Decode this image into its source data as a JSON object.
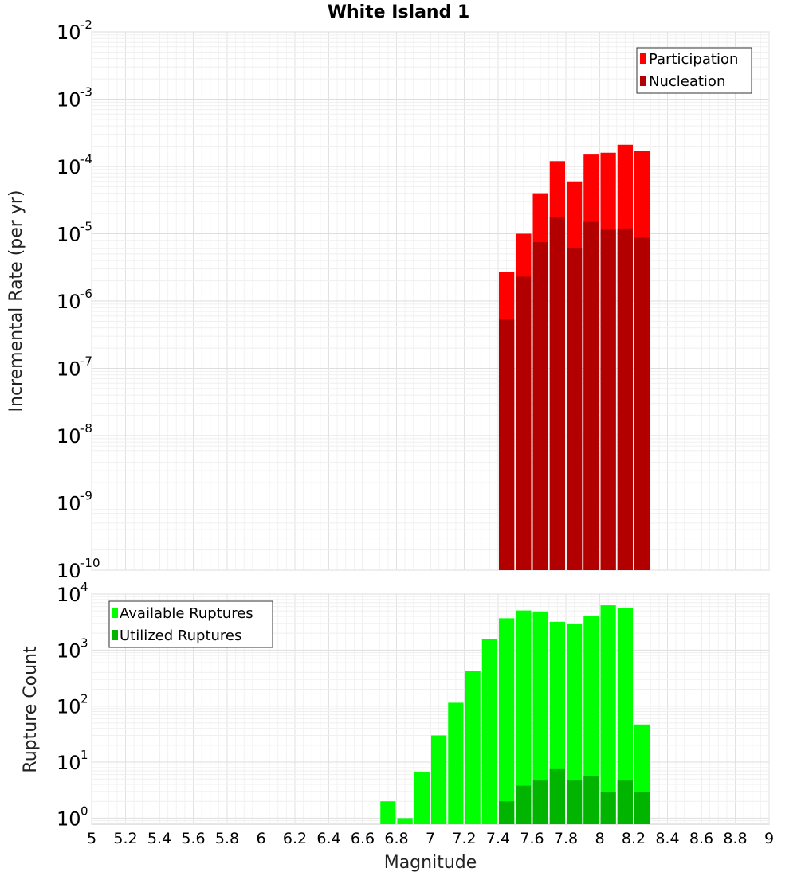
{
  "chart_data": [
    {
      "type": "bar",
      "title": "White Island 1",
      "xlabel": "",
      "ylabel": "Incremental Rate (per yr)",
      "yscale": "log",
      "ylim": [
        1e-10,
        0.01
      ],
      "xlim": [
        5,
        9
      ],
      "y_tick_exponents": [
        "-2",
        "-3",
        "-4",
        "-5",
        "-6",
        "-7",
        "-8",
        "-9",
        "-10"
      ],
      "y_tick_base": "10",
      "grid": true,
      "legend": "top-right",
      "x": [
        7.45,
        7.55,
        7.65,
        7.75,
        7.85,
        7.95,
        8.05,
        8.15,
        8.25
      ],
      "series": [
        {
          "name": "Participation",
          "color": "#ff0000",
          "values": [
            2.7e-06,
            1e-05,
            4e-05,
            0.00012,
            6e-05,
            0.00015,
            0.00016,
            0.00021,
            0.00017
          ]
        },
        {
          "name": "Nucleation",
          "color": "#b20000",
          "values": [
            5.3e-07,
            2.3e-06,
            7.5e-06,
            1.75e-05,
            6.2e-06,
            1.5e-05,
            1.15e-05,
            1.2e-05,
            8.7e-06
          ]
        }
      ]
    },
    {
      "type": "bar",
      "title": "",
      "xlabel": "Magnitude",
      "ylabel": "Rupture Count",
      "yscale": "log",
      "ylim": [
        0.78,
        10000
      ],
      "xlim": [
        5,
        9
      ],
      "x_ticks": [
        "5",
        "5.2",
        "5.4",
        "5.6",
        "5.8",
        "6",
        "6.2",
        "6.4",
        "6.6",
        "6.8",
        "7",
        "7.2",
        "7.4",
        "7.6",
        "7.8",
        "8",
        "8.2",
        "8.4",
        "8.6",
        "8.8",
        "9"
      ],
      "y_tick_exponents": [
        "4",
        "3",
        "2",
        "1",
        "0"
      ],
      "y_tick_base": "10",
      "grid": true,
      "legend": "top-left",
      "x": [
        6.75,
        6.85,
        6.95,
        7.05,
        7.15,
        7.25,
        7.35,
        7.45,
        7.55,
        7.65,
        7.75,
        7.85,
        7.95,
        8.05,
        8.15,
        8.25
      ],
      "series": [
        {
          "name": "Available Ruptures",
          "color": "#00ff00",
          "values": [
            2,
            1,
            6.6,
            30,
            115,
            430,
            1550,
            3700,
            5100,
            4900,
            3200,
            2900,
            4100,
            6300,
            5700,
            47
          ]
        },
        {
          "name": "Utilized Ruptures",
          "color": "#00b400",
          "values": [
            0,
            0,
            0,
            0,
            0,
            0,
            0,
            2,
            3.8,
            4.7,
            7.5,
            4.7,
            5.6,
            2.9,
            4.7,
            2.9
          ]
        }
      ]
    }
  ]
}
